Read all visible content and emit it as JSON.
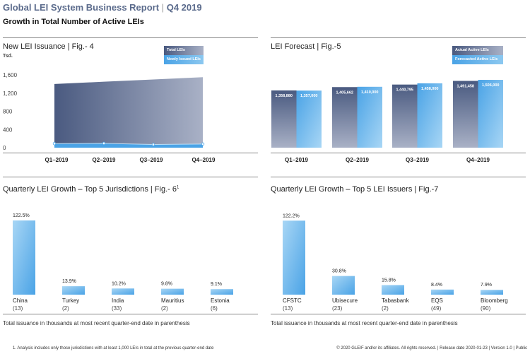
{
  "header": {
    "title": "Global LEI System Business Report",
    "title_sep": "|",
    "period": "Q4 2019",
    "subtitle": "Growth in Total Number of Active LEIs"
  },
  "colors": {
    "dark": "#4a5a80",
    "light": "#5aaee8",
    "title": "#5b6b8c"
  },
  "chart_data": [
    {
      "type": "area",
      "title": "New LEI Issuance | Fig.- 4",
      "ylabel": "Tsd.",
      "categories": [
        "Q1–2019",
        "Q2–2019",
        "Q3–2019",
        "Q4–2019"
      ],
      "yticks": [
        "1,600",
        "1,200",
        "800",
        "400",
        "0"
      ],
      "ylim": [
        0,
        1600
      ],
      "series": [
        {
          "name": "Total LEIs",
          "values": [
            1400,
            1450,
            1500,
            1550
          ]
        },
        {
          "name": "Newly Issued LEIs",
          "values": [
            90,
            95,
            70,
            80
          ]
        }
      ],
      "legend": "top-right"
    },
    {
      "type": "bar",
      "title": "LEI Forecast | Fig.-5",
      "categories": [
        "Q1–2019",
        "Q2–2019",
        "Q3–2019",
        "Q4–2019"
      ],
      "series": [
        {
          "name": "Actual Active LEIs",
          "values": [
            1358880,
            1405662,
            1440795,
            1491458
          ],
          "labels": [
            "1,358,880",
            "1,405,662",
            "1,440,795",
            "1,491,458"
          ]
        },
        {
          "name": "Forecasted Active LEIs",
          "values": [
            1357000,
            1410000,
            1458000,
            1506000
          ],
          "labels": [
            "1,357,000",
            "1,410,000",
            "1,458,000",
            "1,506,000"
          ]
        }
      ],
      "legend": "top-right"
    },
    {
      "type": "bar",
      "title": "Quarterly LEI Growth – Top 5 Jurisdictions | Fig.- 6",
      "title_sup": "1",
      "categories": [
        "China",
        "Turkey",
        "India",
        "Mauritius",
        "Estonia"
      ],
      "sublabels": [
        "(13)",
        "(2)",
        "(33)",
        "(2)",
        "(6)"
      ],
      "values": [
        122.5,
        13.9,
        10.2,
        9.8,
        9.1
      ],
      "labels": [
        "122.5%",
        "13.9%",
        "10.2%",
        "9.8%",
        "9.1%"
      ],
      "note": "Total issuance in thousands at most recent quarter-end date in parenthesis"
    },
    {
      "type": "bar",
      "title": "Quarterly LEI Growth – Top 5 LEI Issuers | Fig.-7",
      "categories": [
        "CFSTC",
        "Ubisecure",
        "Tabasbank",
        "EQS",
        "Bloomberg"
      ],
      "sublabels": [
        "(13)",
        "(23)",
        "(2)",
        "(49)",
        "(90)"
      ],
      "values": [
        122.2,
        30.8,
        15.8,
        8.4,
        7.9
      ],
      "labels": [
        "122.2%",
        "30.8%",
        "15.8%",
        "8.4%",
        "7.9%"
      ],
      "note": "Total issuance in thousands at most recent quarter-end date in parenthesis"
    }
  ],
  "footer": {
    "footnote": "1. Analysis includes only those jurisdictions with at least 1,000 LEIs in total at the previous quarter-end date",
    "copyright": "© 2020 GLEIF and/or its affiliates. All rights reserved.  |  Release date 2020-01-23  |  Version 1.0  |  Public"
  }
}
